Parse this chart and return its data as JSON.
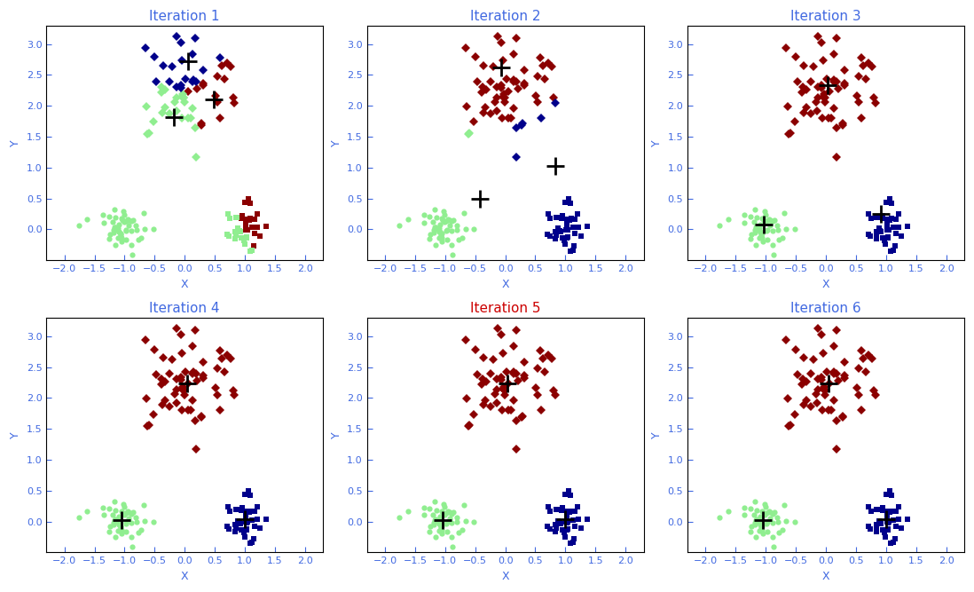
{
  "title_color_default": "#4169E1",
  "title_color_iter5": "#CC0000",
  "axis_label_color": "#4169E1",
  "tick_color": "#4169E1",
  "bg_color": "#ffffff",
  "xlim": [
    -2.3,
    2.3
  ],
  "ylim": [
    -0.5,
    3.3
  ],
  "xticks": [
    -2,
    -1.5,
    -1,
    -0.5,
    0,
    0.5,
    1,
    1.5,
    2
  ],
  "yticks": [
    0,
    0.5,
    1,
    1.5,
    2,
    2.5,
    3
  ],
  "xlabel": "X",
  "ylabel": "Y",
  "cluster_colors": [
    "#8B0000",
    "#90EE90",
    "#00008B"
  ],
  "centroid_color": "black",
  "seed": 15
}
